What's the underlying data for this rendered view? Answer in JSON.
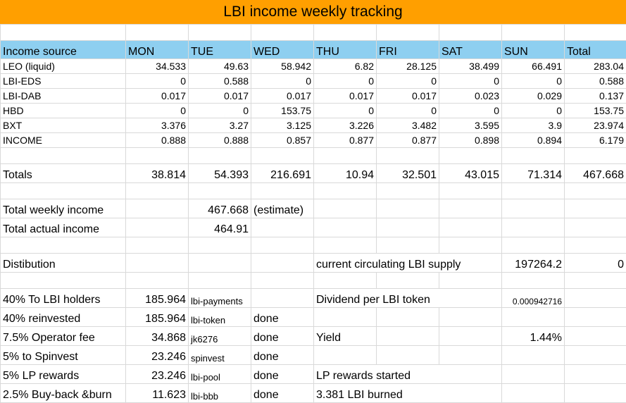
{
  "title": "LBI income weekly tracking",
  "header": [
    "Income source",
    "MON",
    "TUE",
    "WED",
    "THU",
    "FRI",
    "SAT",
    "SUN",
    "Total"
  ],
  "rows": [
    {
      "source": "LEO (liquid)",
      "values": [
        "34.533",
        "49.63",
        "58.942",
        "6.82",
        "28.125",
        "38.499",
        "66.491",
        "283.04"
      ]
    },
    {
      "source": "LBI-EDS",
      "values": [
        "0",
        "0.588",
        "0",
        "0",
        "0",
        "0",
        "0",
        "0.588"
      ]
    },
    {
      "source": "LBI-DAB",
      "values": [
        "0.017",
        "0.017",
        "0.017",
        "0.017",
        "0.017",
        "0.023",
        "0.029",
        "0.137"
      ]
    },
    {
      "source": "HBD",
      "values": [
        "0",
        "0",
        "153.75",
        "0",
        "0",
        "0",
        "0",
        "153.75"
      ]
    },
    {
      "source": "BXT",
      "values": [
        "3.376",
        "3.27",
        "3.125",
        "3.226",
        "3.482",
        "3.595",
        "3.9",
        "23.974"
      ]
    },
    {
      "source": "INCOME",
      "values": [
        "0.888",
        "0.888",
        "0.857",
        "0.877",
        "0.877",
        "0.898",
        "0.894",
        "6.179"
      ]
    }
  ],
  "totals": {
    "label": "Totals",
    "values": [
      "38.814",
      "54.393",
      "216.691",
      "10.94",
      "32.501",
      "43.015",
      "71.314",
      "467.668"
    ]
  },
  "summary": {
    "weekly_label": "Total weekly income",
    "weekly_value": "467.668",
    "weekly_note": "(estimate)",
    "actual_label": "Total actual income",
    "actual_value": "464.91"
  },
  "distribution": {
    "label": "Distibution",
    "supply_label": "current circulating LBI supply",
    "supply_value": "197264.2",
    "supply_extra": "0",
    "items": [
      {
        "label": "40% To LBI holders",
        "amount": "185.964",
        "account": "lbi-payments",
        "status": ""
      },
      {
        "label": "40% reinvested",
        "amount": "185.964",
        "account": "lbi-token",
        "status": "done"
      },
      {
        "label": "7.5% Operator fee",
        "amount": "34.868",
        "account": "jk6276",
        "status": "done"
      },
      {
        "label": "5% to Spinvest",
        "amount": "23.246",
        "account": "spinvest",
        "status": "done"
      },
      {
        "label": "5% LP rewards",
        "amount": "23.246",
        "account": "lbi-pool",
        "status": "done"
      },
      {
        "label": "2.5% Buy-back &burn",
        "amount": "11.623",
        "account": "lbi-bbb",
        "status": "done"
      }
    ],
    "dividend_label": "Dividend per LBI token",
    "dividend_value": "0.000942716",
    "yield_label": "Yield",
    "yield_value": "1.44%",
    "lp_note": "LP rewards started",
    "burn_note": "3.381 LBI burned"
  }
}
